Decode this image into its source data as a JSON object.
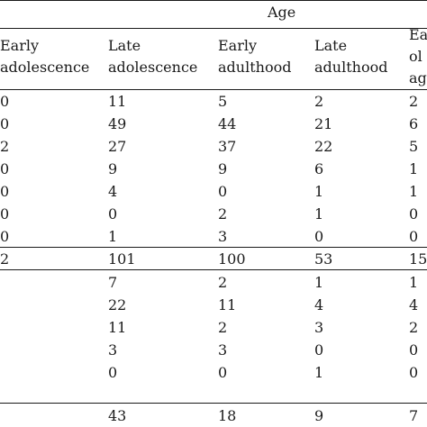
{
  "table": {
    "group_header": "Age",
    "columns": [
      [
        "Early",
        "adolescence"
      ],
      [
        "Late",
        "adolescence"
      ],
      [
        "Early",
        "adulthood"
      ],
      [
        "Late",
        "adulthood"
      ],
      [
        "Ea",
        "ol",
        "ag"
      ]
    ],
    "section1_rows": [
      [
        "0",
        "11",
        "5",
        "2",
        "2"
      ],
      [
        "0",
        "49",
        "44",
        "21",
        "6"
      ],
      [
        "2",
        "27",
        "37",
        "22",
        "5"
      ],
      [
        "0",
        "9",
        "9",
        "6",
        "1"
      ],
      [
        "0",
        "4",
        "0",
        "1",
        "1"
      ],
      [
        "0",
        "0",
        "2",
        "1",
        "0"
      ],
      [
        "0",
        "1",
        "3",
        "0",
        "0"
      ]
    ],
    "section1_total": [
      "2",
      "101",
      "100",
      "53",
      "15"
    ],
    "section2_rows": [
      [
        "",
        "7",
        "2",
        "1",
        "1"
      ],
      [
        "",
        "22",
        "11",
        "4",
        "4"
      ],
      [
        "",
        "11",
        "2",
        "3",
        "2"
      ],
      [
        "",
        "3",
        "3",
        "0",
        "0"
      ],
      [
        "",
        "0",
        "0",
        "1",
        "0"
      ]
    ],
    "section2_total": [
      "",
      "43",
      "18",
      "9",
      "7"
    ]
  }
}
